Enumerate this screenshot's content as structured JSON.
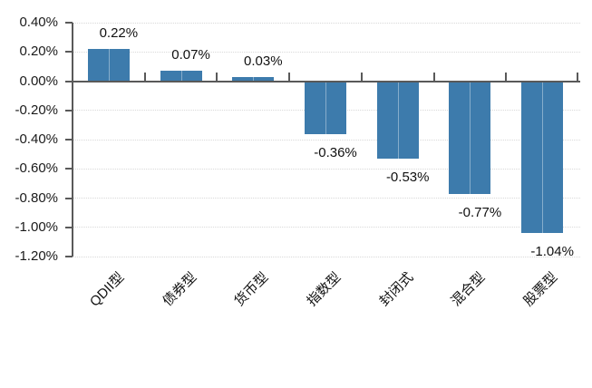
{
  "chart_data": {
    "type": "bar",
    "title": "",
    "xlabel": "",
    "ylabel": "",
    "categories": [
      "QDII型",
      "债券型",
      "货币型",
      "指数型",
      "封闭式",
      "混合型",
      "股票型"
    ],
    "values": [
      0.22,
      0.07,
      0.03,
      -0.36,
      -0.53,
      -0.77,
      -1.04
    ],
    "value_labels": [
      "0.22%",
      "0.07%",
      "0.03%",
      "-0.36%",
      "-0.53%",
      "-0.77%",
      "-1.04%"
    ],
    "y_ticks": [
      {
        "value": 0.4,
        "label": "0.40%"
      },
      {
        "value": 0.2,
        "label": "0.20%"
      },
      {
        "value": 0.0,
        "label": "0.00%"
      },
      {
        "value": -0.2,
        "label": "-0.20%"
      },
      {
        "value": -0.4,
        "label": "-0.40%"
      },
      {
        "value": -0.6,
        "label": "-0.60%"
      },
      {
        "value": -0.8,
        "label": "-0.80%"
      },
      {
        "value": -1.0,
        "label": "-1.00%"
      },
      {
        "value": -1.2,
        "label": "-1.20%"
      }
    ],
    "ylim": [
      -1.2,
      0.4
    ],
    "grid": true,
    "legend": false,
    "colors": {
      "bar": "#3d7bac",
      "axis": "#595959",
      "gridline": "#d9d9d9",
      "text": "#1a1a1a"
    }
  }
}
